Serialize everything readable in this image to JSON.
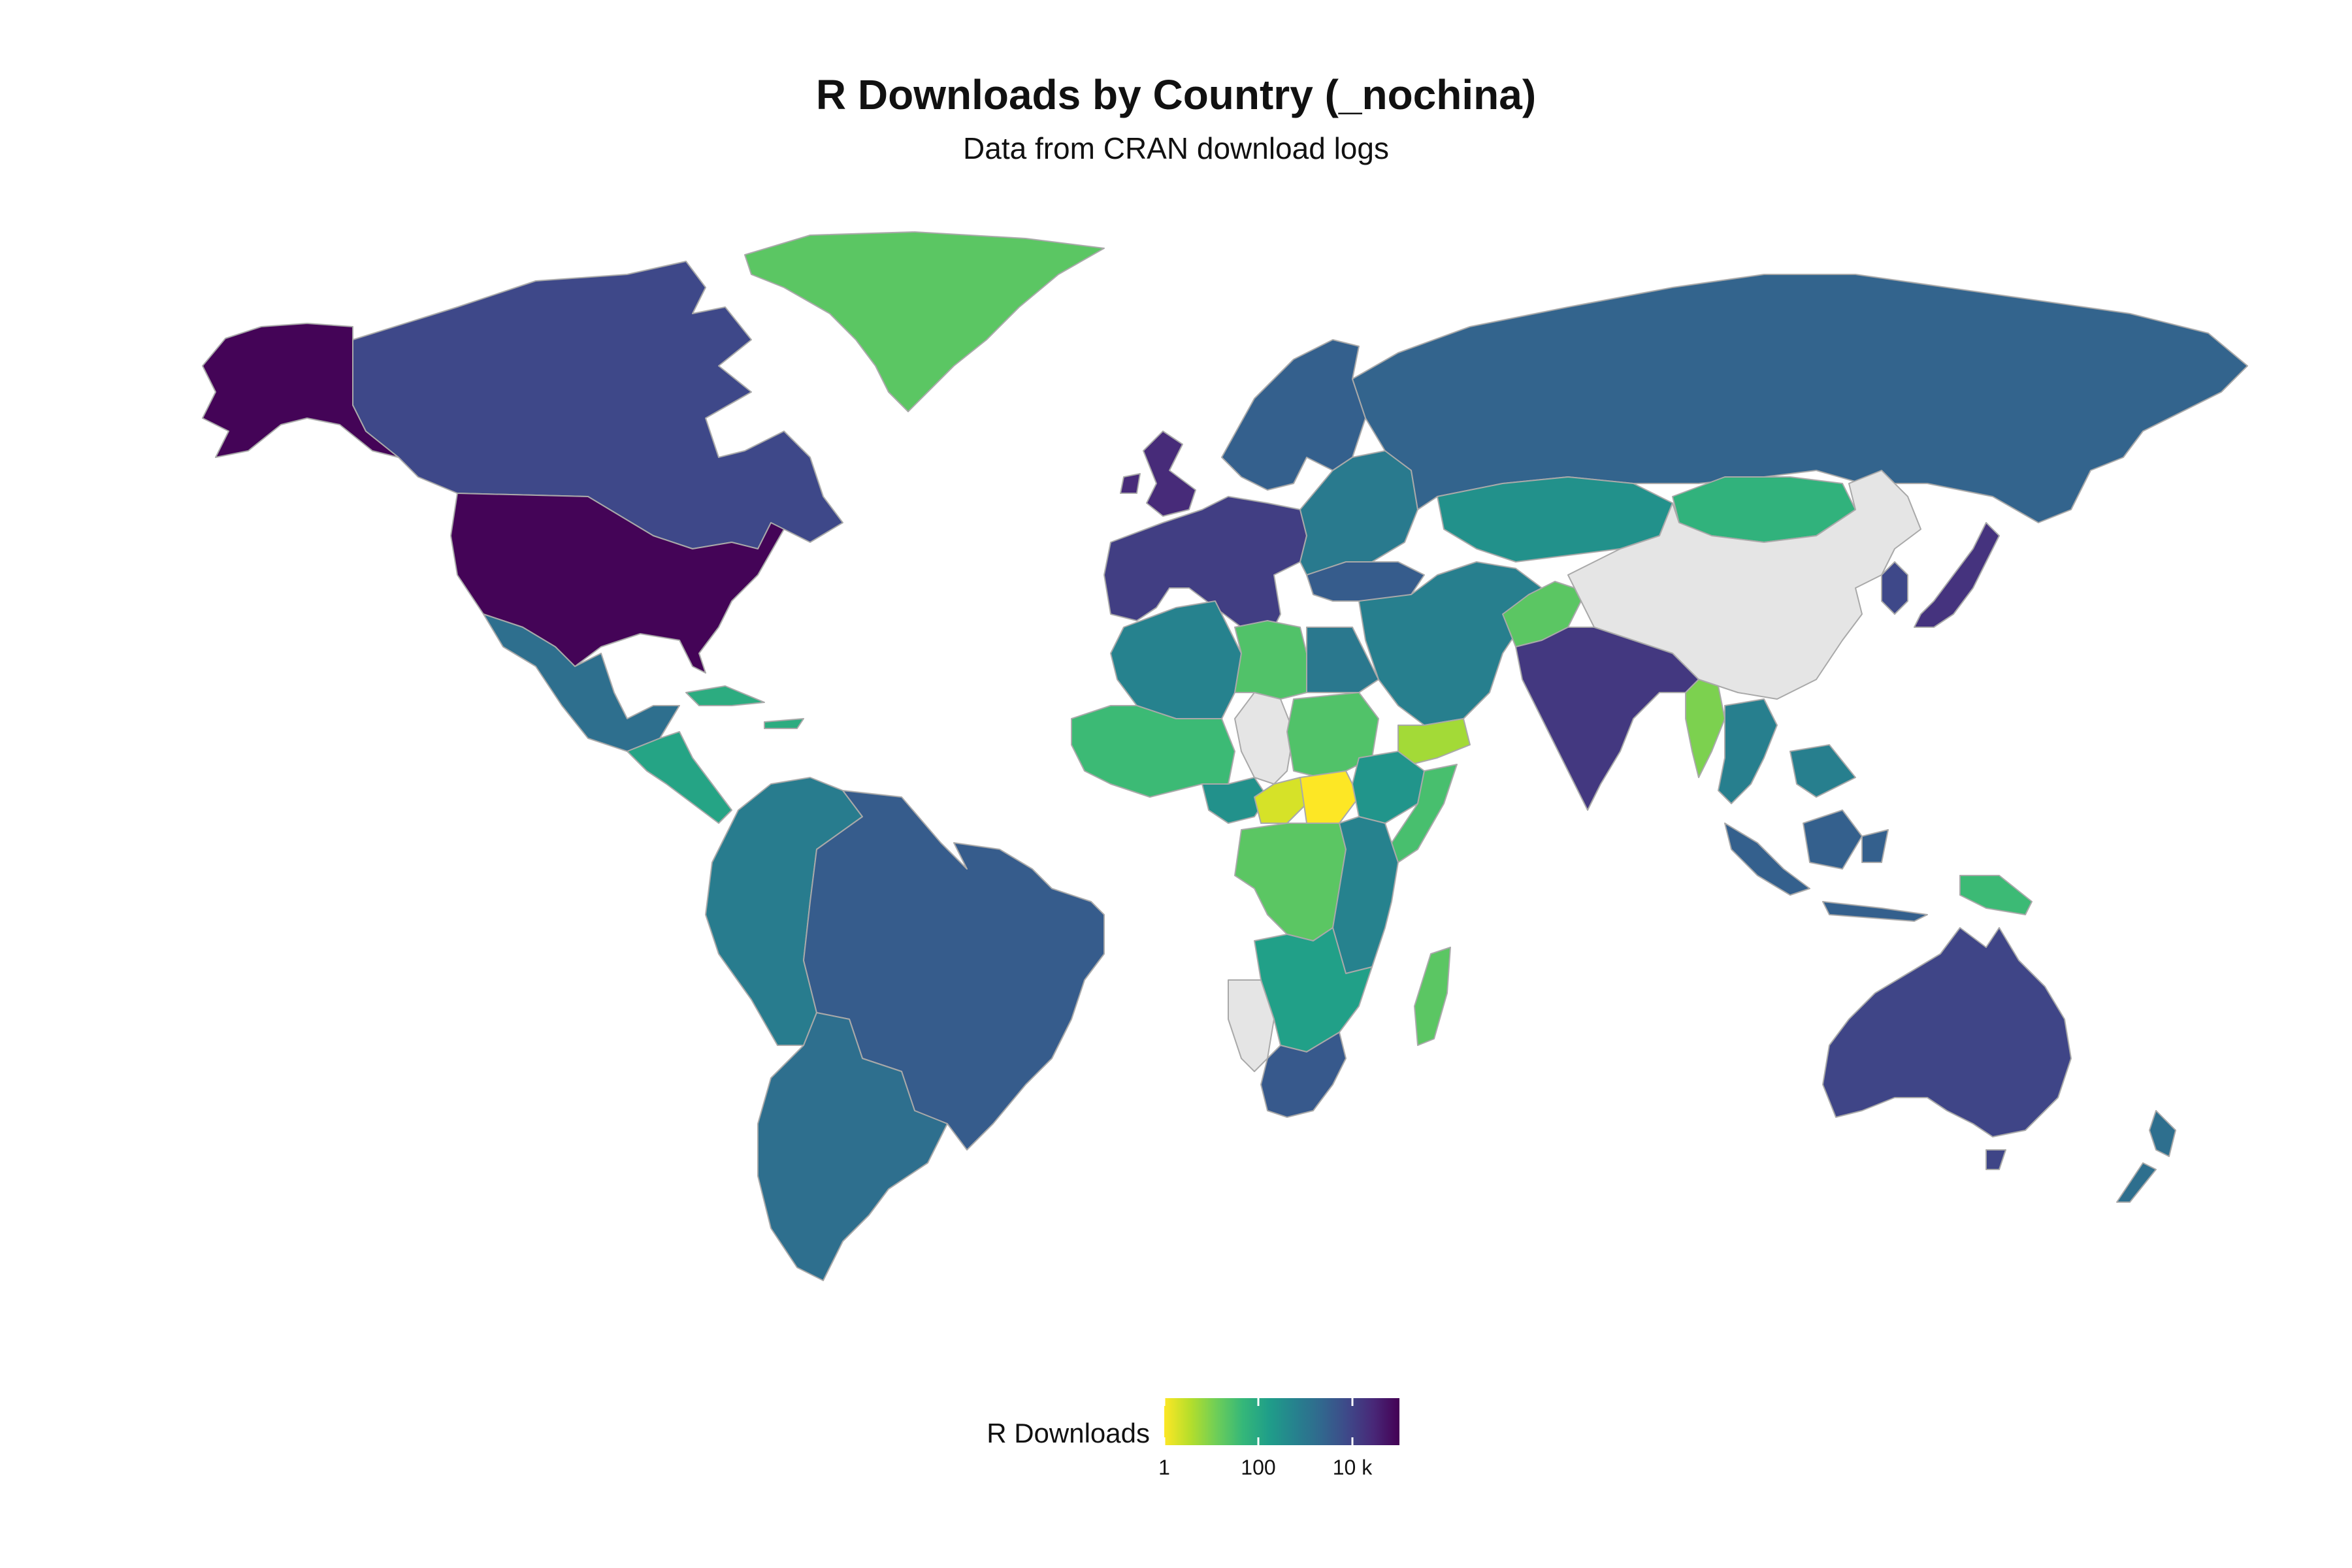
{
  "title": "R Downloads by Country (_nochina)",
  "subtitle": "Data from CRAN download logs",
  "legend": {
    "title": "R Downloads",
    "scale": "log10",
    "domain": [
      1,
      100000
    ],
    "ticks": [
      {
        "value": 1,
        "label": "1"
      },
      {
        "value": 100,
        "label": "100"
      },
      {
        "value": 10000,
        "label": "10 k"
      }
    ],
    "colors": [
      "#fde725",
      "#b5de2b",
      "#6ece58",
      "#35b779",
      "#1f9e89",
      "#26828e",
      "#31688e",
      "#3e4989",
      "#482878",
      "#440154"
    ]
  },
  "missing_color": "#e5e5e5",
  "regions": [
    {
      "id": "usa",
      "downloads": 90000
    },
    {
      "id": "alaska",
      "downloads": 90000
    },
    {
      "id": "canada",
      "downloads": 8000
    },
    {
      "id": "greenland",
      "downloads": 20
    },
    {
      "id": "mexico",
      "downloads": 1500
    },
    {
      "id": "central-america",
      "downloads": 120
    },
    {
      "id": "caribbean",
      "downloads": 80
    },
    {
      "id": "brazil",
      "downloads": 3500
    },
    {
      "id": "south-america-west",
      "downloads": 800
    },
    {
      "id": "argentina",
      "downloads": 1500
    },
    {
      "id": "western-europe",
      "downloads": 12000
    },
    {
      "id": "uk",
      "downloads": 25000
    },
    {
      "id": "scandinavia",
      "downloads": 3000
    },
    {
      "id": "eastern-europe",
      "downloads": 900
    },
    {
      "id": "russia",
      "downloads": 2500
    },
    {
      "id": "kazakhstan",
      "downloads": 300
    },
    {
      "id": "mongolia",
      "downloads": 60
    },
    {
      "id": "china",
      "downloads": null
    },
    {
      "id": "turkey",
      "downloads": 3500
    },
    {
      "id": "middle-east",
      "downloads": 700
    },
    {
      "id": "yemen",
      "downloads": 5
    },
    {
      "id": "afghanistan",
      "downloads": 20
    },
    {
      "id": "india",
      "downloads": 15000
    },
    {
      "id": "myanmar",
      "downloads": 10
    },
    {
      "id": "southeast-asia",
      "downloads": 700
    },
    {
      "id": "japan",
      "downloads": 18000
    },
    {
      "id": "korea",
      "downloads": 8000
    },
    {
      "id": "indonesia",
      "downloads": 3000
    },
    {
      "id": "papua-new-guinea",
      "downloads": 40
    },
    {
      "id": "australia",
      "downloads": 9000
    },
    {
      "id": "new-zealand",
      "downloads": 1500
    },
    {
      "id": "north-africa",
      "downloads": 600
    },
    {
      "id": "libya",
      "downloads": 25
    },
    {
      "id": "egypt",
      "downloads": 1000
    },
    {
      "id": "west-africa",
      "downloads": 40
    },
    {
      "id": "nigeria",
      "downloads": 300
    },
    {
      "id": "chad",
      "downloads": null
    },
    {
      "id": "sudan",
      "downloads": 25
    },
    {
      "id": "central-african-republic",
      "downloads": 2
    },
    {
      "id": "south-sudan",
      "downloads": 1
    },
    {
      "id": "ethiopia",
      "downloads": 250
    },
    {
      "id": "somalia",
      "downloads": 30
    },
    {
      "id": "dr-congo",
      "downloads": 20
    },
    {
      "id": "east-africa",
      "downloads": 600
    },
    {
      "id": "southern-africa",
      "downloads": 150
    },
    {
      "id": "namibia",
      "downloads": null
    },
    {
      "id": "south-africa",
      "downloads": 4000
    },
    {
      "id": "madagascar",
      "downloads": 20
    }
  ]
}
